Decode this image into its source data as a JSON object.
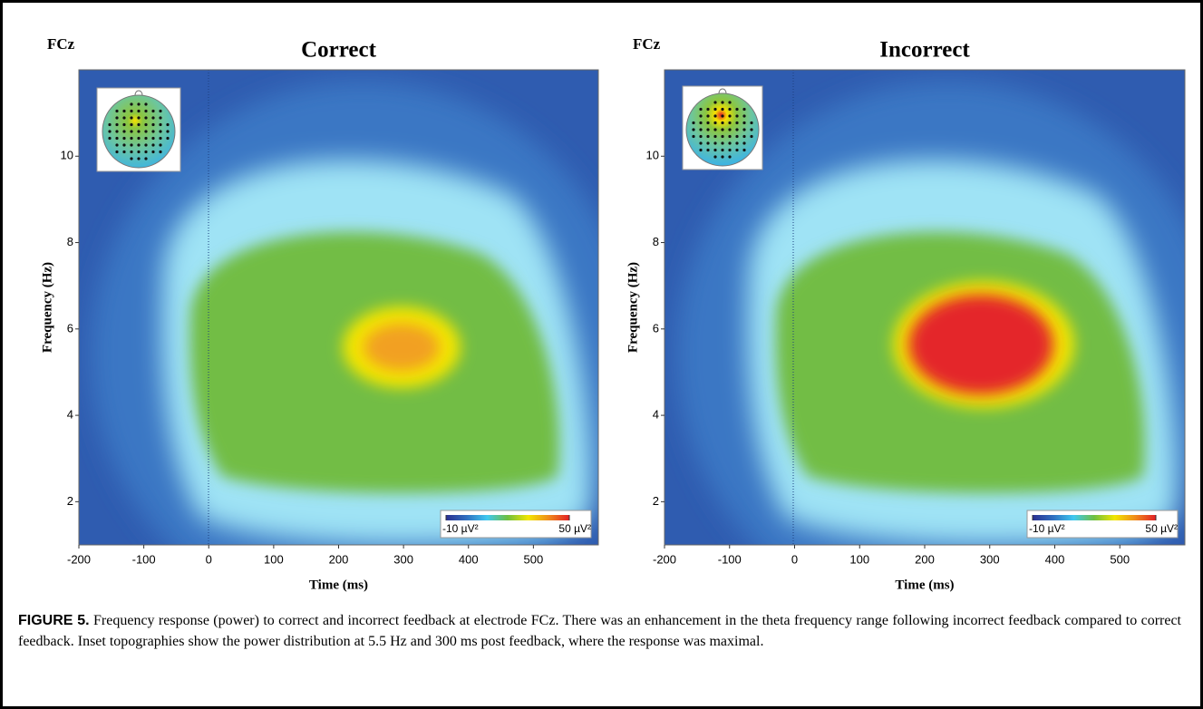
{
  "chart_data": [
    {
      "type": "heatmap",
      "title": "Correct",
      "electrode": "FCz",
      "xlabel": "Time (ms)",
      "ylabel": "Frequency (Hz)",
      "xlim": [
        -200,
        600
      ],
      "xticks": [
        -200,
        -100,
        0,
        100,
        200,
        300,
        400,
        500
      ],
      "ylim": [
        1,
        12
      ],
      "yticks": [
        2,
        4,
        6,
        8,
        10
      ],
      "colorbar": {
        "lim": [
          -10,
          50
        ],
        "ticks": [
          {
            "value": -10,
            "label": "-10 µV²"
          },
          {
            "value": 50,
            "label": "50 µV²"
          }
        ],
        "colormap": [
          "#2b2f8f",
          "#2f6fc0",
          "#3fc8f0",
          "#6fbf3f",
          "#f2e600",
          "#f08a1a",
          "#e21f26"
        ]
      }
    },
    {
      "type": "heatmap",
      "title": "Incorrect",
      "electrode": "FCz",
      "xlabel": "Time (ms)",
      "ylabel": "Frequency (Hz)",
      "xlim": [
        -200,
        600
      ],
      "xticks": [
        -200,
        -100,
        0,
        100,
        200,
        300,
        400,
        500
      ],
      "ylim": [
        1,
        12
      ],
      "yticks": [
        2,
        4,
        6,
        8,
        10
      ],
      "colorbar": {
        "lim": [
          -10,
          50
        ],
        "ticks": [
          {
            "value": -10,
            "label": "-10 µV²"
          },
          {
            "value": 50,
            "label": "50 µV²"
          }
        ],
        "colormap": [
          "#2b2f8f",
          "#2f6fc0",
          "#3fc8f0",
          "#6fbf3f",
          "#f2e600",
          "#f08a1a",
          "#e21f26"
        ]
      }
    }
  ],
  "caption": {
    "label": "FIGURE 5.",
    "text": "Frequency response (power) to correct and incorrect feedback at electrode FCz. There was an enhancement in the theta frequency range following incorrect feedback compared to correct feedback. Inset topographies show the power distribution at 5.5 Hz and 300 ms post feedback, where the response was maximal."
  }
}
